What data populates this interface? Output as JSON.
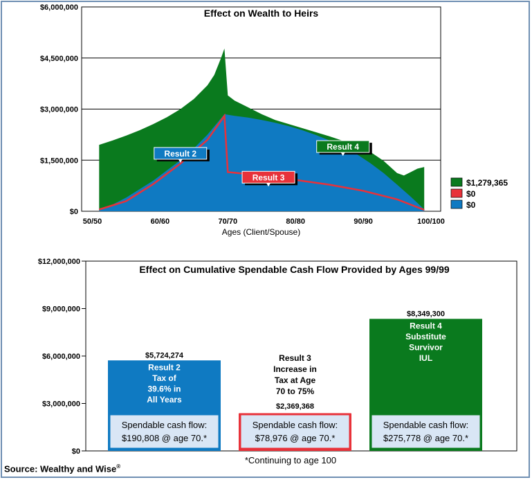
{
  "source": {
    "text": "Source: Wealthy and Wise",
    "mark": "®"
  },
  "footnote": "*Continuing to age 100",
  "colors": {
    "green": "#0a7a1e",
    "blue": "#0f7ac2",
    "red": "#e8323a",
    "box_fill": "#d9e6f5"
  },
  "chart_data": [
    {
      "type": "area",
      "title": "Effect on Wealth to Heirs",
      "xlabel": "Ages (Client/Spouse)",
      "ylabel": "",
      "ylim": [
        0,
        6000000
      ],
      "y_ticks": [
        {
          "value": 0,
          "label": "$0"
        },
        {
          "value": 1500000,
          "label": "$1,500,000"
        },
        {
          "value": 3000000,
          "label": "$3,000,000"
        },
        {
          "value": 4500000,
          "label": "$4,500,000"
        },
        {
          "value": 6000000,
          "label": "$6,000,000"
        }
      ],
      "xlim": [
        50,
        100
      ],
      "x_ticks": [
        {
          "value": 50,
          "label": "50/50"
        },
        {
          "value": 60,
          "label": "60/60"
        },
        {
          "value": 70,
          "label": "70/70"
        },
        {
          "value": 80,
          "label": "80/80"
        },
        {
          "value": 90,
          "label": "90/90"
        },
        {
          "value": 100,
          "label": "100/100"
        }
      ],
      "grid": "horizontal",
      "legend_position": "right",
      "series": [
        {
          "name": "Result 4",
          "legend": "$1,279,365",
          "color": "#0a7a1e",
          "x": [
            51,
            53,
            55,
            57,
            59,
            61,
            63,
            65,
            67,
            68,
            69,
            69.5,
            70,
            71,
            73,
            75,
            77,
            79,
            81,
            83,
            85,
            87,
            89,
            91,
            93,
            95,
            96,
            97,
            98,
            99
          ],
          "y": [
            1950000,
            2080000,
            2220000,
            2380000,
            2560000,
            2760000,
            3000000,
            3300000,
            3700000,
            4000000,
            4500000,
            4780000,
            3400000,
            3250000,
            3050000,
            2850000,
            2680000,
            2560000,
            2440000,
            2320000,
            2200000,
            2070000,
            1920000,
            1750000,
            1480000,
            1120000,
            1050000,
            1150000,
            1250000,
            1300000
          ]
        },
        {
          "name": "Result 3",
          "legend": "$0",
          "color": "#e8323a",
          "x": [
            51,
            55,
            59,
            63,
            67,
            69.5,
            70,
            71,
            75,
            80,
            85,
            90,
            95,
            99
          ],
          "y": [
            50000,
            300000,
            800000,
            1400000,
            2100000,
            2800000,
            1150000,
            1130000,
            1050000,
            920000,
            780000,
            600000,
            350000,
            40000
          ]
        },
        {
          "name": "Result 2",
          "legend": "$0",
          "color": "#0f7ac2",
          "x": [
            51,
            53,
            55,
            57,
            59,
            61,
            63,
            65,
            67,
            69.5,
            71,
            73,
            75,
            77,
            79,
            81,
            83,
            85,
            87,
            89,
            91,
            93,
            95,
            97,
            99
          ],
          "y": [
            50000,
            200000,
            400000,
            650000,
            900000,
            1200000,
            1500000,
            1850000,
            2250000,
            2850000,
            2800000,
            2750000,
            2680000,
            2600000,
            2500000,
            2380000,
            2240000,
            2080000,
            1900000,
            1680000,
            1420000,
            1120000,
            780000,
            430000,
            60000
          ]
        }
      ],
      "callouts": [
        {
          "label": "Result 2",
          "x": 63,
          "y": 1700000
        },
        {
          "label": "Result 3",
          "x": 76,
          "y": 1000000
        },
        {
          "label": "Result 4",
          "x": 87,
          "y": 1900000
        }
      ]
    },
    {
      "type": "bar",
      "title": "Effect on Cumulative Spendable Cash Flow Provided by Ages 99/99",
      "xlabel": "",
      "ylabel": "",
      "ylim": [
        0,
        12000000
      ],
      "y_ticks": [
        {
          "value": 0,
          "label": "$0"
        },
        {
          "value": 3000000,
          "label": "$3,000,000"
        },
        {
          "value": 6000000,
          "label": "$6,000,000"
        },
        {
          "value": 9000000,
          "label": "$9,000,000"
        },
        {
          "value": 12000000,
          "label": "$12,000,000"
        }
      ],
      "grid": "none",
      "bars": [
        {
          "value": 5724274,
          "value_label": "$5,724,274",
          "color": "#0f7ac2",
          "label_lines": [
            "Result 2",
            "Tax of",
            "39.6% in",
            "All Years"
          ],
          "box_lines": [
            "Spendable cash flow:",
            "$190,808 @ age 70.*"
          ],
          "box_border": "#0f7ac2"
        },
        {
          "value": 2369368,
          "value_label": "$2,369,368",
          "color": "#e8323a",
          "label_lines": [
            "Result 3",
            "Increase in",
            "Tax at Age",
            "70 to 75%"
          ],
          "box_lines": [
            "Spendable cash flow:",
            "$78,976 @ age 70.*"
          ],
          "box_border": "#e8323a"
        },
        {
          "value": 8349300,
          "value_label": "$8,349,300",
          "color": "#0a7a1e",
          "label_lines": [
            "Result 4",
            "Substitute",
            "Survivor",
            "IUL"
          ],
          "box_lines": [
            "Spendable cash flow:",
            "$275,778 @ age 70.*"
          ],
          "box_border": "#0a7a1e"
        }
      ]
    }
  ]
}
